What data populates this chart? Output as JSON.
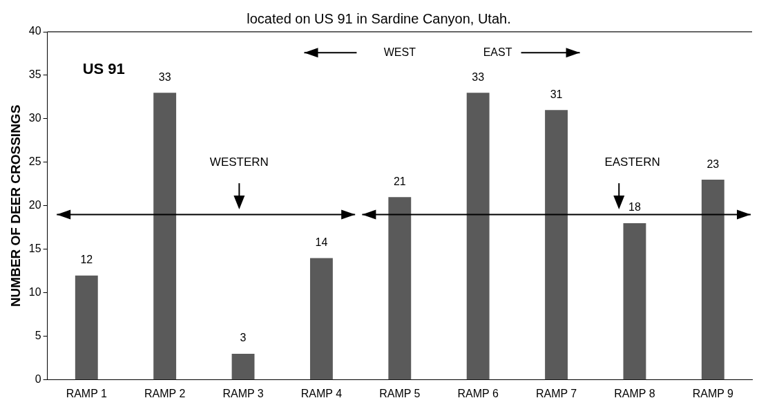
{
  "chart_data": {
    "type": "bar",
    "title": "located on US 91 in Sardine Canyon, Utah.",
    "ylabel": "NUMBER OF DEER CROSSINGS",
    "categories": [
      "RAMP 1",
      "RAMP 2",
      "RAMP 3",
      "RAMP 4",
      "RAMP 5",
      "RAMP 6",
      "RAMP 7",
      "RAMP 8",
      "RAMP 9"
    ],
    "values": [
      12,
      33,
      3,
      14,
      21,
      33,
      31,
      18,
      23
    ],
    "color": "#5a5a5a",
    "ylim": [
      0,
      40
    ],
    "yticks": [
      0,
      5,
      10,
      15,
      20,
      25,
      30,
      35,
      40
    ],
    "grid": false,
    "legend": false,
    "data_labels": true,
    "annotations": [
      "US 91",
      "WEST",
      "EAST",
      "WESTERN",
      "EASTERN"
    ]
  }
}
